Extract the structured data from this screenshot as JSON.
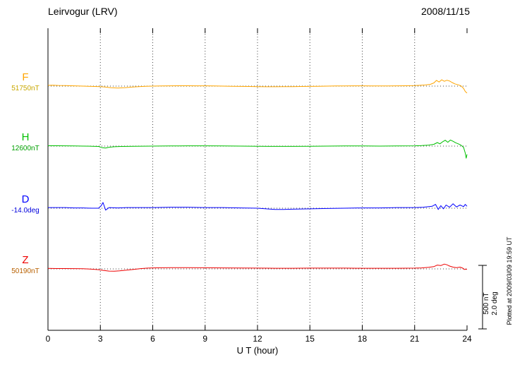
{
  "header": {
    "title": "Leirvogur (LRV)",
    "date": "2008/11/15"
  },
  "x_axis": {
    "label": "U T (hour)"
  },
  "scale_bar": {
    "label_nt": "500 nT",
    "label_deg": "2.0 deg"
  },
  "footer_note": "Plotted at 2009/03/09 19:59 UT",
  "colors": {
    "axis": "#000000",
    "grid": "#444444"
  },
  "chart_data": {
    "type": "line",
    "title": "Leirvogur (LRV) magnetogram",
    "subtitle": "2008/11/15",
    "xlabel": "U T (hour)",
    "x_range": [
      0,
      24
    ],
    "x_ticks": [
      0,
      3,
      6,
      9,
      12,
      15,
      18,
      21,
      24
    ],
    "grid": "dotted vertical lines every 3 h; dotted horizontal baseline per trace",
    "legend_position": "left labels per trace",
    "scale_bar": {
      "nT": 500,
      "deg": 2.0
    },
    "series": [
      {
        "name": "F",
        "baseline_label": "51750nT",
        "baseline_value": 51750,
        "unit": "nT",
        "color": "#ffa500",
        "value_color": "#c8a800",
        "offsets": [
          [
            0,
            6
          ],
          [
            0.3,
            7
          ],
          [
            0.6,
            5
          ],
          [
            1,
            4
          ],
          [
            1.5,
            2
          ],
          [
            2,
            0
          ],
          [
            2.5,
            -2
          ],
          [
            3,
            -4
          ],
          [
            3.3,
            -8
          ],
          [
            3.6,
            -13
          ],
          [
            4,
            -15
          ],
          [
            4.4,
            -13
          ],
          [
            4.8,
            -8
          ],
          [
            5.2,
            -4
          ],
          [
            5.6,
            -1
          ],
          [
            6,
            0
          ],
          [
            6.5,
            1
          ],
          [
            7,
            2
          ],
          [
            7.5,
            3
          ],
          [
            8,
            3
          ],
          [
            8.5,
            2
          ],
          [
            9,
            2
          ],
          [
            9.5,
            1
          ],
          [
            10,
            0
          ],
          [
            10.5,
            -1
          ],
          [
            11,
            -2
          ],
          [
            11.5,
            -3
          ],
          [
            12,
            -4
          ],
          [
            12.5,
            -5
          ],
          [
            13,
            -5
          ],
          [
            13.5,
            -4
          ],
          [
            14,
            -4
          ],
          [
            14.5,
            -3
          ],
          [
            15,
            -2
          ],
          [
            15.5,
            -1
          ],
          [
            16,
            0
          ],
          [
            16.5,
            1
          ],
          [
            17,
            1
          ],
          [
            17.5,
            2
          ],
          [
            18,
            2
          ],
          [
            18.5,
            1
          ],
          [
            19,
            1
          ],
          [
            19.5,
            1
          ],
          [
            20,
            2
          ],
          [
            20.5,
            3
          ],
          [
            21,
            4
          ],
          [
            21.3,
            6
          ],
          [
            21.6,
            9
          ],
          [
            21.9,
            14
          ],
          [
            22.1,
            25
          ],
          [
            22.25,
            45
          ],
          [
            22.4,
            32
          ],
          [
            22.55,
            50
          ],
          [
            22.7,
            38
          ],
          [
            22.85,
            46
          ],
          [
            23,
            40
          ],
          [
            23.15,
            28
          ],
          [
            23.3,
            18
          ],
          [
            23.5,
            10
          ],
          [
            23.65,
            2
          ],
          [
            23.8,
            -18
          ],
          [
            23.9,
            -42
          ],
          [
            24,
            -55
          ]
        ]
      },
      {
        "name": "H",
        "baseline_label": "12600nT",
        "baseline_value": 12600,
        "unit": "nT",
        "color": "#00c000",
        "value_color": "#00a000",
        "offsets": [
          [
            0,
            3
          ],
          [
            0.5,
            3
          ],
          [
            1,
            2
          ],
          [
            1.5,
            1
          ],
          [
            2,
            0
          ],
          [
            2.5,
            -1
          ],
          [
            2.9,
            -3
          ],
          [
            3.1,
            -12
          ],
          [
            3.3,
            -15
          ],
          [
            3.5,
            -9
          ],
          [
            3.8,
            -5
          ],
          [
            4.2,
            -3
          ],
          [
            4.6,
            -2
          ],
          [
            5,
            -1
          ],
          [
            6,
            0
          ],
          [
            7,
            1
          ],
          [
            8,
            2
          ],
          [
            9,
            2
          ],
          [
            10,
            1
          ],
          [
            11,
            0
          ],
          [
            12,
            -1
          ],
          [
            13,
            -2
          ],
          [
            14,
            -2
          ],
          [
            15,
            -1
          ],
          [
            16,
            0
          ],
          [
            17,
            1
          ],
          [
            18,
            1
          ],
          [
            19,
            0
          ],
          [
            20,
            1
          ],
          [
            21,
            2
          ],
          [
            21.4,
            4
          ],
          [
            21.8,
            8
          ],
          [
            22.1,
            14
          ],
          [
            22.3,
            28
          ],
          [
            22.45,
            18
          ],
          [
            22.6,
            34
          ],
          [
            22.75,
            46
          ],
          [
            22.9,
            30
          ],
          [
            23.05,
            48
          ],
          [
            23.2,
            38
          ],
          [
            23.35,
            26
          ],
          [
            23.5,
            18
          ],
          [
            23.65,
            8
          ],
          [
            23.8,
            -10
          ],
          [
            23.9,
            -55
          ],
          [
            23.95,
            -95
          ],
          [
            24,
            -65
          ]
        ]
      },
      {
        "name": "D",
        "baseline_label": "-14.0deg",
        "baseline_value": -14.0,
        "unit": "deg",
        "color": "#0000ff",
        "value_color": "#0000dd",
        "offsets": [
          [
            0,
            0.02
          ],
          [
            0.5,
            0.02
          ],
          [
            1,
            0.02
          ],
          [
            1.5,
            0.01
          ],
          [
            2,
            0.01
          ],
          [
            2.5,
            0
          ],
          [
            2.9,
            0
          ],
          [
            3.05,
            0.08
          ],
          [
            3.15,
            0.18
          ],
          [
            3.3,
            -0.06
          ],
          [
            3.5,
            0.02
          ],
          [
            4,
            0.01
          ],
          [
            4.5,
            0.02
          ],
          [
            5,
            0.02
          ],
          [
            6,
            0.02
          ],
          [
            7,
            0.03
          ],
          [
            8,
            0.03
          ],
          [
            9,
            0.02
          ],
          [
            10,
            0.02
          ],
          [
            11,
            0.01
          ],
          [
            12,
            0
          ],
          [
            12.5,
            -0.02
          ],
          [
            13,
            -0.04
          ],
          [
            13.5,
            -0.04
          ],
          [
            14,
            -0.03
          ],
          [
            15,
            -0.02
          ],
          [
            16,
            -0.01
          ],
          [
            17,
            0
          ],
          [
            18,
            0.01
          ],
          [
            19,
            0.01
          ],
          [
            20,
            0.02
          ],
          [
            21,
            0.02
          ],
          [
            21.5,
            0.03
          ],
          [
            22,
            0.06
          ],
          [
            22.2,
            0.12
          ],
          [
            22.35,
            -0.04
          ],
          [
            22.5,
            0.08
          ],
          [
            22.65,
            -0.02
          ],
          [
            22.8,
            0.1
          ],
          [
            23,
            0.03
          ],
          [
            23.2,
            0.14
          ],
          [
            23.4,
            0.04
          ],
          [
            23.6,
            0.1
          ],
          [
            23.8,
            0.05
          ],
          [
            23.9,
            0.12
          ],
          [
            24,
            0.06
          ]
        ]
      },
      {
        "name": "Z",
        "baseline_label": "50190nT",
        "baseline_value": 50190,
        "unit": "nT",
        "color": "#ee0000",
        "value_color": "#b86000",
        "offsets": [
          [
            0,
            4
          ],
          [
            0.5,
            3
          ],
          [
            1,
            3
          ],
          [
            1.5,
            2
          ],
          [
            2,
            1
          ],
          [
            2.5,
            -2
          ],
          [
            2.9,
            -6
          ],
          [
            3.2,
            -12
          ],
          [
            3.5,
            -17
          ],
          [
            3.8,
            -18
          ],
          [
            4.1,
            -15
          ],
          [
            4.5,
            -10
          ],
          [
            4.9,
            -4
          ],
          [
            5.3,
            2
          ],
          [
            5.7,
            6
          ],
          [
            6,
            8
          ],
          [
            6.5,
            9
          ],
          [
            7,
            10
          ],
          [
            7.5,
            10
          ],
          [
            8,
            10
          ],
          [
            9,
            9
          ],
          [
            10,
            8
          ],
          [
            11,
            7
          ],
          [
            12,
            6
          ],
          [
            13,
            5
          ],
          [
            14,
            5
          ],
          [
            15,
            6
          ],
          [
            16,
            6
          ],
          [
            17,
            6
          ],
          [
            18,
            5
          ],
          [
            19,
            5
          ],
          [
            20,
            5
          ],
          [
            21,
            6
          ],
          [
            21.4,
            8
          ],
          [
            21.8,
            12
          ],
          [
            22.1,
            18
          ],
          [
            22.3,
            30
          ],
          [
            22.5,
            26
          ],
          [
            22.7,
            38
          ],
          [
            22.85,
            32
          ],
          [
            23,
            22
          ],
          [
            23.2,
            14
          ],
          [
            23.4,
            10
          ],
          [
            23.6,
            14
          ],
          [
            23.75,
            6
          ],
          [
            23.85,
            -4
          ],
          [
            24,
            -2
          ]
        ]
      }
    ]
  }
}
